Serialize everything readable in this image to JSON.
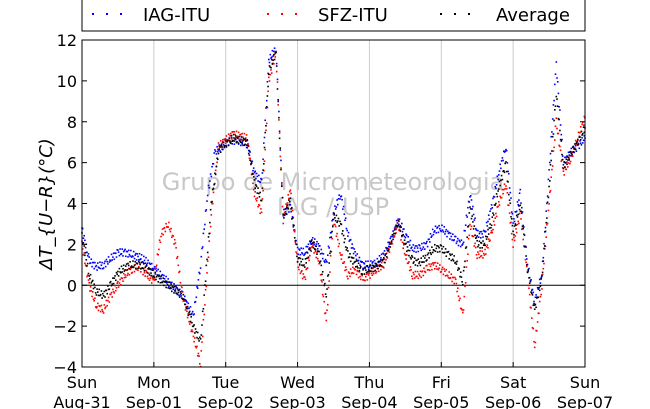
{
  "chart_data": {
    "type": "scatter",
    "title": "",
    "ylabel": "ΔT_{U−R}(°C)",
    "xlabel": "",
    "ylim": [
      -4,
      12
    ],
    "yticks": [
      -4,
      -2,
      0,
      2,
      4,
      6,
      8,
      10,
      12
    ],
    "xlim": [
      0,
      7
    ],
    "x_ticks": [
      {
        "day": "Sun",
        "date": "Aug-31"
      },
      {
        "day": "Mon",
        "date": "Sep-01"
      },
      {
        "day": "Tue",
        "date": "Sep-02"
      },
      {
        "day": "Wed",
        "date": "Sep-03"
      },
      {
        "day": "Thu",
        "date": "Sep-04"
      },
      {
        "day": "Fri",
        "date": "Sep-05"
      },
      {
        "day": "Sat",
        "date": "Sep-06"
      },
      {
        "day": "Sun",
        "date": "Sep-07"
      }
    ],
    "grid": "vertical",
    "zero_line": true,
    "legend_position": "top",
    "watermark": [
      "Grupo de Micrometeorologia",
      "IAG / USP"
    ],
    "series": [
      {
        "name": "IAG-ITU",
        "color": "#0000ff",
        "points": [
          [
            0.0,
            2.8
          ],
          [
            0.1,
            1.2
          ],
          [
            0.2,
            0.9
          ],
          [
            0.3,
            1.0
          ],
          [
            0.4,
            1.3
          ],
          [
            0.5,
            1.6
          ],
          [
            0.6,
            1.6
          ],
          [
            0.7,
            1.5
          ],
          [
            0.85,
            1.3
          ],
          [
            1.0,
            0.8
          ],
          [
            1.4,
            -0.5
          ],
          [
            1.55,
            -1.5
          ],
          [
            1.65,
            1.0
          ],
          [
            1.75,
            4.5
          ],
          [
            1.85,
            6.5
          ],
          [
            2.0,
            7.0
          ],
          [
            2.15,
            7.1
          ],
          [
            2.3,
            6.9
          ],
          [
            2.4,
            5.5
          ],
          [
            2.5,
            5.0
          ],
          [
            2.6,
            11.0
          ],
          [
            2.7,
            11.6
          ],
          [
            2.8,
            3.5
          ],
          [
            2.9,
            3.8
          ],
          [
            3.0,
            1.7
          ],
          [
            3.1,
            1.6
          ],
          [
            3.2,
            2.2
          ],
          [
            3.3,
            1.9
          ],
          [
            3.4,
            1.0
          ],
          [
            3.5,
            3.5
          ],
          [
            3.6,
            4.5
          ],
          [
            3.7,
            2.5
          ],
          [
            3.8,
            1.5
          ],
          [
            3.9,
            1.0
          ],
          [
            4.0,
            1.0
          ],
          [
            4.1,
            1.1
          ],
          [
            4.2,
            1.5
          ],
          [
            4.3,
            2.2
          ],
          [
            4.4,
            3.2
          ],
          [
            4.5,
            2.5
          ],
          [
            4.6,
            1.8
          ],
          [
            4.7,
            1.8
          ],
          [
            4.8,
            2.0
          ],
          [
            4.9,
            2.7
          ],
          [
            5.0,
            2.8
          ],
          [
            5.1,
            2.5
          ],
          [
            5.2,
            2.2
          ],
          [
            5.3,
            2.0
          ],
          [
            5.4,
            4.5
          ],
          [
            5.5,
            2.5
          ],
          [
            5.6,
            2.5
          ],
          [
            5.7,
            3.8
          ],
          [
            5.8,
            5.5
          ],
          [
            5.9,
            6.8
          ],
          [
            6.0,
            3.0
          ],
          [
            6.1,
            4.5
          ],
          [
            6.2,
            1.0
          ],
          [
            6.3,
            -0.8
          ],
          [
            6.4,
            0.5
          ],
          [
            6.5,
            5.5
          ],
          [
            6.6,
            10.8
          ],
          [
            6.7,
            6.0
          ],
          [
            6.8,
            6.5
          ],
          [
            6.9,
            6.8
          ],
          [
            7.0,
            7.2
          ]
        ]
      },
      {
        "name": "SFZ-ITU",
        "color": "#ff0000",
        "points": [
          [
            0.0,
            2.0
          ],
          [
            0.1,
            0.0
          ],
          [
            0.2,
            -1.0
          ],
          [
            0.3,
            -1.2
          ],
          [
            0.4,
            -0.5
          ],
          [
            0.5,
            0.0
          ],
          [
            0.6,
            0.5
          ],
          [
            0.7,
            0.8
          ],
          [
            0.8,
            0.9
          ],
          [
            0.9,
            0.5
          ],
          [
            1.0,
            0.2
          ],
          [
            1.1,
            2.5
          ],
          [
            1.2,
            3.0
          ],
          [
            1.3,
            2.0
          ],
          [
            1.4,
            -0.5
          ],
          [
            1.55,
            -2.5
          ],
          [
            1.65,
            -3.8
          ],
          [
            1.8,
            3.5
          ],
          [
            1.9,
            6.8
          ],
          [
            2.1,
            7.4
          ],
          [
            2.3,
            7.2
          ],
          [
            2.4,
            4.5
          ],
          [
            2.5,
            3.5
          ],
          [
            2.6,
            10.0
          ],
          [
            2.7,
            11.4
          ],
          [
            2.8,
            3.2
          ],
          [
            2.9,
            4.7
          ],
          [
            3.0,
            1.0
          ],
          [
            3.1,
            0.3
          ],
          [
            3.2,
            2.0
          ],
          [
            3.3,
            1.2
          ],
          [
            3.4,
            -1.8
          ],
          [
            3.5,
            3.3
          ],
          [
            3.6,
            1.5
          ],
          [
            3.7,
            0.5
          ],
          [
            3.8,
            0.8
          ],
          [
            3.9,
            0.3
          ],
          [
            4.0,
            0.5
          ],
          [
            4.1,
            0.8
          ],
          [
            4.2,
            1.0
          ],
          [
            4.3,
            2.0
          ],
          [
            4.4,
            3.0
          ],
          [
            4.5,
            1.5
          ],
          [
            4.6,
            0.5
          ],
          [
            4.7,
            0.5
          ],
          [
            4.8,
            0.8
          ],
          [
            4.9,
            1.0
          ],
          [
            5.0,
            0.8
          ],
          [
            5.1,
            0.5
          ],
          [
            5.2,
            0.2
          ],
          [
            5.3,
            -1.5
          ],
          [
            5.4,
            3.0
          ],
          [
            5.5,
            1.5
          ],
          [
            5.6,
            1.5
          ],
          [
            5.7,
            2.5
          ],
          [
            5.8,
            4.0
          ],
          [
            5.9,
            5.0
          ],
          [
            6.0,
            2.0
          ],
          [
            6.1,
            3.5
          ],
          [
            6.2,
            0.5
          ],
          [
            6.3,
            -3.0
          ],
          [
            6.4,
            0.0
          ],
          [
            6.5,
            4.0
          ],
          [
            6.6,
            8.0
          ],
          [
            6.7,
            5.5
          ],
          [
            6.8,
            6.2
          ],
          [
            6.9,
            7.2
          ],
          [
            7.0,
            8.2
          ]
        ]
      },
      {
        "name": "Average",
        "color": "#000000",
        "points": [
          [
            0.0,
            2.4
          ],
          [
            0.1,
            0.5
          ],
          [
            0.2,
            -0.3
          ],
          [
            0.3,
            -0.5
          ],
          [
            0.4,
            0.0
          ],
          [
            0.5,
            0.6
          ],
          [
            0.6,
            0.9
          ],
          [
            0.7,
            1.0
          ],
          [
            0.8,
            1.0
          ],
          [
            0.9,
            0.8
          ],
          [
            1.0,
            0.5
          ],
          [
            1.4,
            -0.5
          ],
          [
            1.55,
            -2.0
          ],
          [
            1.65,
            -2.8
          ],
          [
            1.8,
            4.0
          ],
          [
            1.9,
            6.6
          ],
          [
            2.1,
            7.2
          ],
          [
            2.3,
            7.0
          ],
          [
            2.4,
            5.0
          ],
          [
            2.5,
            4.2
          ],
          [
            2.6,
            10.5
          ],
          [
            2.7,
            11.4
          ],
          [
            2.8,
            3.3
          ],
          [
            2.9,
            4.2
          ],
          [
            3.0,
            1.3
          ],
          [
            3.1,
            1.0
          ],
          [
            3.2,
            2.1
          ],
          [
            3.3,
            1.5
          ],
          [
            3.4,
            -0.5
          ],
          [
            3.5,
            3.4
          ],
          [
            3.6,
            3.0
          ],
          [
            3.7,
            1.5
          ],
          [
            3.8,
            1.1
          ],
          [
            3.9,
            0.7
          ],
          [
            4.0,
            0.8
          ],
          [
            4.1,
            0.9
          ],
          [
            4.2,
            1.2
          ],
          [
            4.3,
            2.1
          ],
          [
            4.4,
            3.1
          ],
          [
            4.5,
            2.0
          ],
          [
            4.6,
            1.2
          ],
          [
            4.7,
            1.1
          ],
          [
            4.8,
            1.4
          ],
          [
            4.9,
            1.8
          ],
          [
            5.0,
            1.8
          ],
          [
            5.1,
            1.5
          ],
          [
            5.2,
            1.2
          ],
          [
            5.3,
            0.2
          ],
          [
            5.4,
            3.8
          ],
          [
            5.5,
            2.0
          ],
          [
            5.6,
            2.0
          ],
          [
            5.7,
            3.1
          ],
          [
            5.8,
            4.8
          ],
          [
            5.9,
            5.9
          ],
          [
            6.0,
            2.5
          ],
          [
            6.1,
            4.0
          ],
          [
            6.2,
            0.8
          ],
          [
            6.3,
            -1.2
          ],
          [
            6.4,
            0.3
          ],
          [
            6.5,
            4.8
          ],
          [
            6.6,
            9.4
          ],
          [
            6.7,
            5.8
          ],
          [
            6.8,
            6.4
          ],
          [
            6.9,
            7.0
          ],
          [
            7.0,
            7.7
          ]
        ]
      }
    ]
  }
}
